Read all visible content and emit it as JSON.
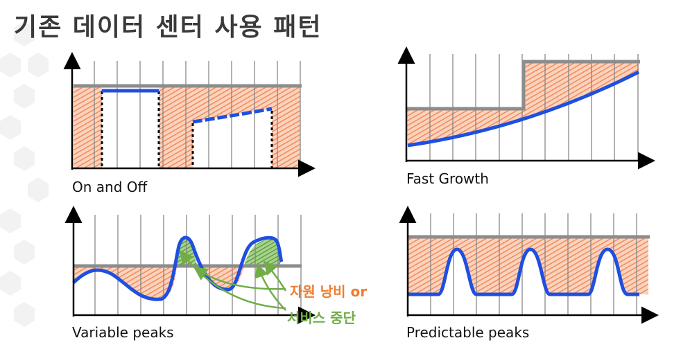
{
  "slide": {
    "title": "기존 데이터 센터 사용 패턴"
  },
  "panels": {
    "on_off": {
      "label": "On and Off"
    },
    "fast_growth": {
      "label": "Fast Growth"
    },
    "variable_peaks": {
      "label": "Variable peaks"
    },
    "predictable_peaks": {
      "label": "Predictable peaks"
    }
  },
  "callouts": {
    "waste_label": "자원 낭비 or",
    "outage_label": "서비스 중단"
  },
  "colors": {
    "capacity": "#8c8c8c",
    "usage": "#1f4fe0",
    "waste_fill": "#f4a582",
    "outage_fill": "#70ad47",
    "axis": "#000000",
    "grid": "#7f7f7f"
  }
}
